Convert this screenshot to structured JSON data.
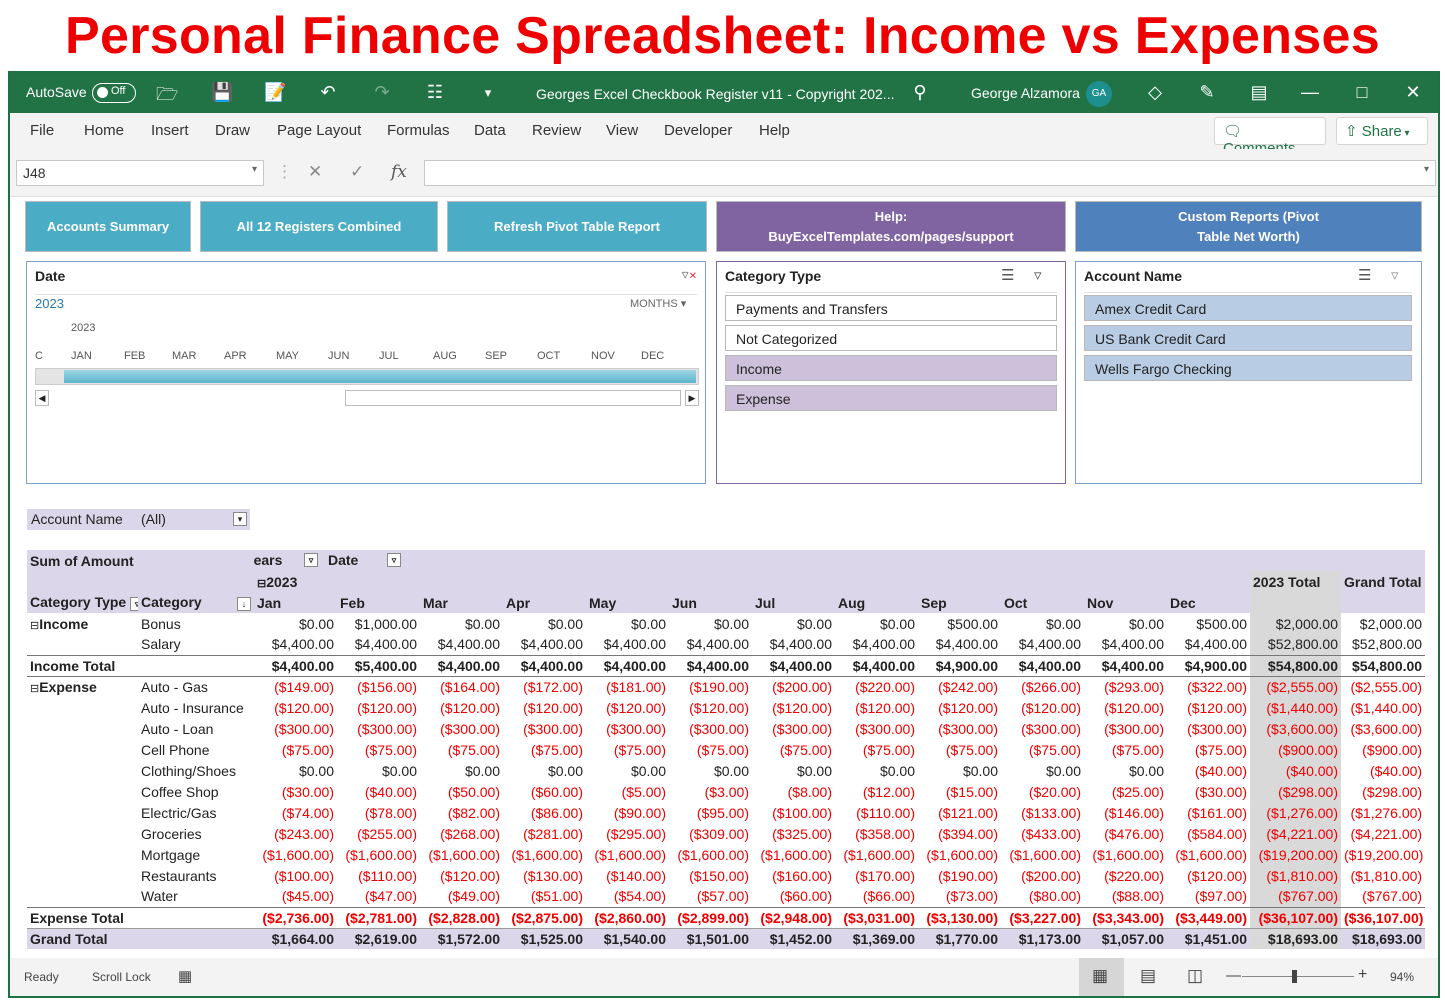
{
  "banner": "Personal Finance Spreadsheet: Income vs Expenses",
  "titlebar": {
    "autosave": "AutoSave",
    "toggle": "Off",
    "doc_title": "Georges Excel Checkbook Register v11 - Copyright 202...",
    "user": "George Alzamora",
    "initials": "GA"
  },
  "menu": [
    "File",
    "Home",
    "Insert",
    "Draw",
    "Page Layout",
    "Formulas",
    "Data",
    "Review",
    "View",
    "Developer",
    "Help"
  ],
  "comments_label": "Comments",
  "share_label": "Share",
  "namebox": "J48",
  "buttons": {
    "accounts_summary": "Accounts Summary",
    "all_registers": "All 12 Registers Combined",
    "refresh_pivot": "Refresh Pivot Table Report",
    "help": "Help: BuyExcelTemplates.com/pages/support",
    "custom_reports": "Custom Reports (Pivot Table Net Worth)"
  },
  "timeline": {
    "header": "Date",
    "year_label": "2023",
    "level": "MONTHS",
    "sub_year": "2023",
    "lead_label": "C",
    "months": [
      "JAN",
      "FEB",
      "MAR",
      "APR",
      "MAY",
      "JUN",
      "JUL",
      "AUG",
      "SEP",
      "OCT",
      "NOV",
      "DEC"
    ]
  },
  "category_slicer": {
    "header": "Category Type",
    "items": [
      "Payments and Transfers",
      "Not Categorized",
      "Income",
      "Expense"
    ]
  },
  "account_slicer": {
    "header": "Account Name",
    "items": [
      "Amex Credit Card",
      "US Bank Credit Card",
      "Wells Fargo Checking"
    ]
  },
  "filter": {
    "label": "Account Name",
    "value": "(All)"
  },
  "pivot": {
    "sum_label": "Sum of Amount",
    "years_label": "Years",
    "date_label": "Date",
    "year": "2023",
    "cat_type_label": "Category Type",
    "category_label": "Category",
    "months": [
      "Jan",
      "Feb",
      "Mar",
      "Apr",
      "May",
      "Jun",
      "Jul",
      "Aug",
      "Sep",
      "Oct",
      "Nov",
      "Dec"
    ],
    "year_total_label": "2023 Total",
    "grand_total_label": "Grand Total",
    "income_label": "Income",
    "expense_label": "Expense",
    "income_total_label": "Income Total",
    "expense_total_label": "Expense Total",
    "grand_row_label": "Grand Total",
    "income_rows": [
      {
        "category": "Bonus",
        "values": [
          "$0.00",
          "$1,000.00",
          "$0.00",
          "$0.00",
          "$0.00",
          "$0.00",
          "$0.00",
          "$0.00",
          "$500.00",
          "$0.00",
          "$0.00",
          "$500.00"
        ],
        "total": "$2,000.00",
        "grand": "$2,000.00"
      },
      {
        "category": "Salary",
        "values": [
          "$4,400.00",
          "$4,400.00",
          "$4,400.00",
          "$4,400.00",
          "$4,400.00",
          "$4,400.00",
          "$4,400.00",
          "$4,400.00",
          "$4,400.00",
          "$4,400.00",
          "$4,400.00",
          "$4,400.00"
        ],
        "total": "$52,800.00",
        "grand": "$52,800.00"
      }
    ],
    "income_total": {
      "values": [
        "$4,400.00",
        "$5,400.00",
        "$4,400.00",
        "$4,400.00",
        "$4,400.00",
        "$4,400.00",
        "$4,400.00",
        "$4,400.00",
        "$4,900.00",
        "$4,400.00",
        "$4,400.00",
        "$4,900.00"
      ],
      "total": "$54,800.00",
      "grand": "$54,800.00"
    },
    "expense_rows": [
      {
        "category": "Auto - Gas",
        "values": [
          "($149.00)",
          "($156.00)",
          "($164.00)",
          "($172.00)",
          "($181.00)",
          "($190.00)",
          "($200.00)",
          "($220.00)",
          "($242.00)",
          "($266.00)",
          "($293.00)",
          "($322.00)"
        ],
        "total": "($2,555.00)",
        "grand": "($2,555.00)"
      },
      {
        "category": "Auto - Insurance",
        "values": [
          "($120.00)",
          "($120.00)",
          "($120.00)",
          "($120.00)",
          "($120.00)",
          "($120.00)",
          "($120.00)",
          "($120.00)",
          "($120.00)",
          "($120.00)",
          "($120.00)",
          "($120.00)"
        ],
        "total": "($1,440.00)",
        "grand": "($1,440.00)"
      },
      {
        "category": "Auto - Loan",
        "values": [
          "($300.00)",
          "($300.00)",
          "($300.00)",
          "($300.00)",
          "($300.00)",
          "($300.00)",
          "($300.00)",
          "($300.00)",
          "($300.00)",
          "($300.00)",
          "($300.00)",
          "($300.00)"
        ],
        "total": "($3,600.00)",
        "grand": "($3,600.00)"
      },
      {
        "category": "Cell Phone",
        "values": [
          "($75.00)",
          "($75.00)",
          "($75.00)",
          "($75.00)",
          "($75.00)",
          "($75.00)",
          "($75.00)",
          "($75.00)",
          "($75.00)",
          "($75.00)",
          "($75.00)",
          "($75.00)"
        ],
        "total": "($900.00)",
        "grand": "($900.00)"
      },
      {
        "category": "Clothing/Shoes",
        "values": [
          "$0.00",
          "$0.00",
          "$0.00",
          "$0.00",
          "$0.00",
          "$0.00",
          "$0.00",
          "$0.00",
          "$0.00",
          "$0.00",
          "$0.00",
          "($40.00)"
        ],
        "total": "($40.00)",
        "grand": "($40.00)"
      },
      {
        "category": "Coffee Shop",
        "values": [
          "($30.00)",
          "($40.00)",
          "($50.00)",
          "($60.00)",
          "($5.00)",
          "($3.00)",
          "($8.00)",
          "($12.00)",
          "($15.00)",
          "($20.00)",
          "($25.00)",
          "($30.00)"
        ],
        "total": "($298.00)",
        "grand": "($298.00)"
      },
      {
        "category": "Electric/Gas",
        "values": [
          "($74.00)",
          "($78.00)",
          "($82.00)",
          "($86.00)",
          "($90.00)",
          "($95.00)",
          "($100.00)",
          "($110.00)",
          "($121.00)",
          "($133.00)",
          "($146.00)",
          "($161.00)"
        ],
        "total": "($1,276.00)",
        "grand": "($1,276.00)"
      },
      {
        "category": "Groceries",
        "values": [
          "($243.00)",
          "($255.00)",
          "($268.00)",
          "($281.00)",
          "($295.00)",
          "($309.00)",
          "($325.00)",
          "($358.00)",
          "($394.00)",
          "($433.00)",
          "($476.00)",
          "($584.00)"
        ],
        "total": "($4,221.00)",
        "grand": "($4,221.00)"
      },
      {
        "category": "Mortgage",
        "values": [
          "($1,600.00)",
          "($1,600.00)",
          "($1,600.00)",
          "($1,600.00)",
          "($1,600.00)",
          "($1,600.00)",
          "($1,600.00)",
          "($1,600.00)",
          "($1,600.00)",
          "($1,600.00)",
          "($1,600.00)",
          "($1,600.00)"
        ],
        "total": "($19,200.00)",
        "grand": "($19,200.00)"
      },
      {
        "category": "Restaurants",
        "values": [
          "($100.00)",
          "($110.00)",
          "($120.00)",
          "($130.00)",
          "($140.00)",
          "($150.00)",
          "($160.00)",
          "($170.00)",
          "($190.00)",
          "($200.00)",
          "($220.00)",
          "($120.00)"
        ],
        "total": "($1,810.00)",
        "grand": "($1,810.00)"
      },
      {
        "category": "Water",
        "values": [
          "($45.00)",
          "($47.00)",
          "($49.00)",
          "($51.00)",
          "($54.00)",
          "($57.00)",
          "($60.00)",
          "($66.00)",
          "($73.00)",
          "($80.00)",
          "($88.00)",
          "($97.00)"
        ],
        "total": "($767.00)",
        "grand": "($767.00)"
      }
    ],
    "expense_total": {
      "values": [
        "($2,736.00)",
        "($2,781.00)",
        "($2,828.00)",
        "($2,875.00)",
        "($2,860.00)",
        "($2,899.00)",
        "($2,948.00)",
        "($3,031.00)",
        "($3,130.00)",
        "($3,227.00)",
        "($3,343.00)",
        "($3,449.00)"
      ],
      "total": "($36,107.00)",
      "grand": "($36,107.00)"
    },
    "grand_total": {
      "values": [
        "$1,664.00",
        "$2,619.00",
        "$1,572.00",
        "$1,525.00",
        "$1,540.00",
        "$1,501.00",
        "$1,452.00",
        "$1,369.00",
        "$1,770.00",
        "$1,173.00",
        "$1,057.00",
        "$1,451.00"
      ],
      "total": "$18,693.00",
      "grand": "$18,693.00"
    }
  },
  "status": {
    "ready": "Ready",
    "scroll_lock": "Scroll Lock",
    "zoom": "94%"
  },
  "colors": {
    "excel_green": "#217346",
    "teal_button": "#4aacc5",
    "purple_button": "#8064a2",
    "blue_button": "#4f81bd",
    "negative": "#ee0000"
  }
}
